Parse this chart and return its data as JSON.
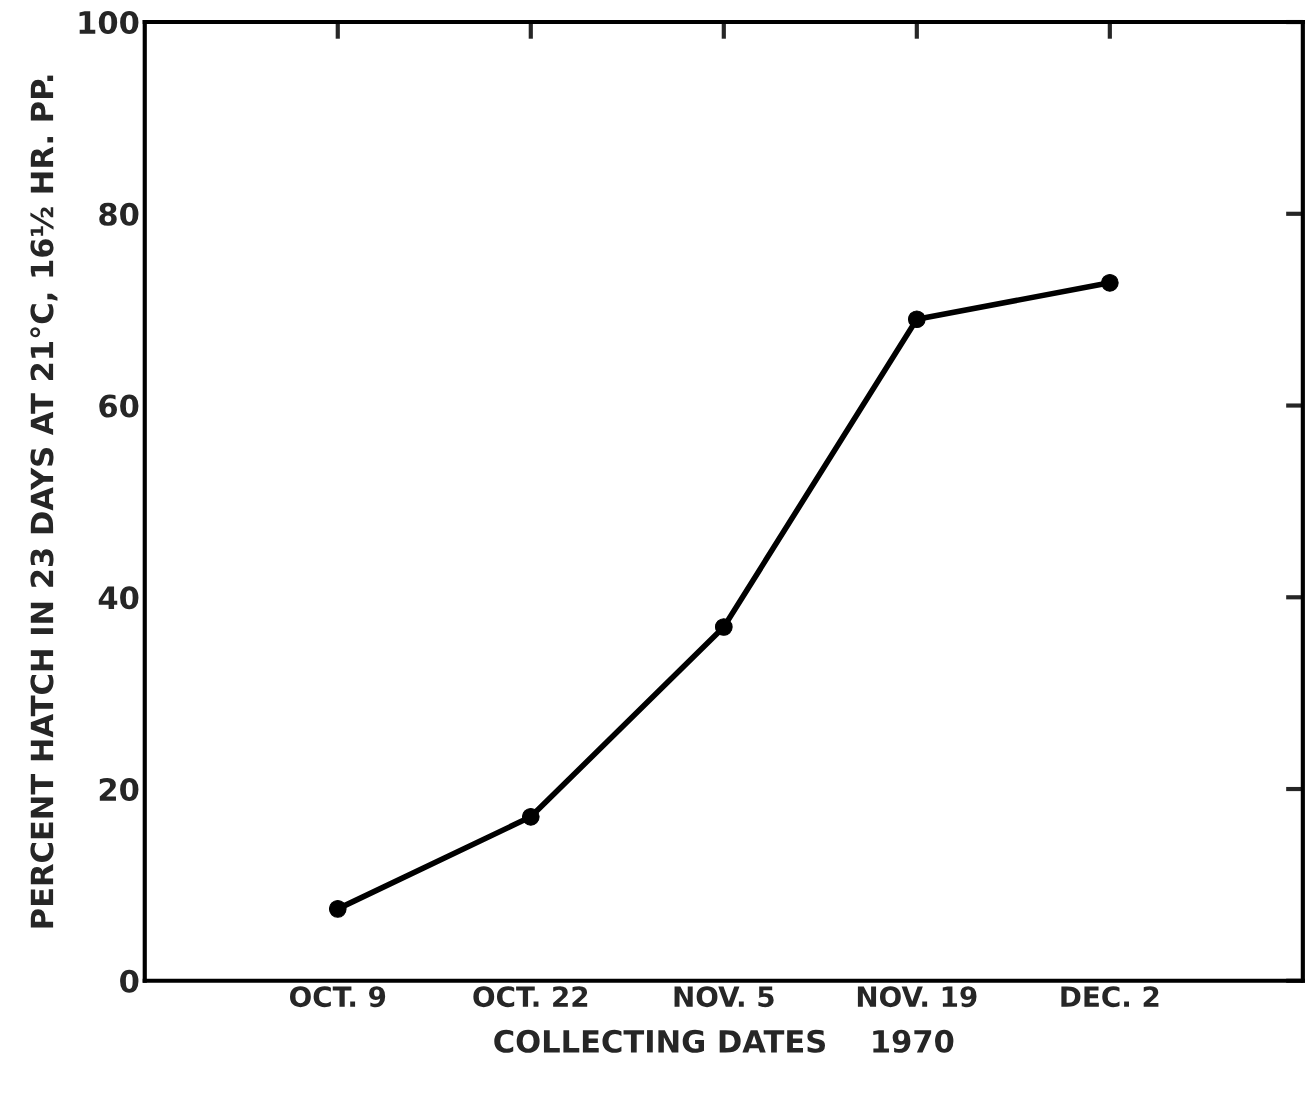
{
  "chart_data": {
    "type": "line",
    "xlabel": "COLLECTING DATES    1970",
    "ylabel": "PERCENT HATCH IN 23 DAYS AT 21°C, 16½ HR. PP.",
    "categories": [
      "OCT. 9",
      "OCT. 22",
      "NOV. 5",
      "NOV. 19",
      "DEC. 2"
    ],
    "series": [
      {
        "color": "#000000",
        "values": [
          7.5,
          17.1,
          36.9,
          69.0,
          72.8
        ]
      }
    ],
    "ylim": [
      0,
      100
    ],
    "yticks": [
      0,
      20,
      40,
      60,
      80,
      100
    ],
    "marker": "circle",
    "line_style": "solid",
    "grid": false
  }
}
